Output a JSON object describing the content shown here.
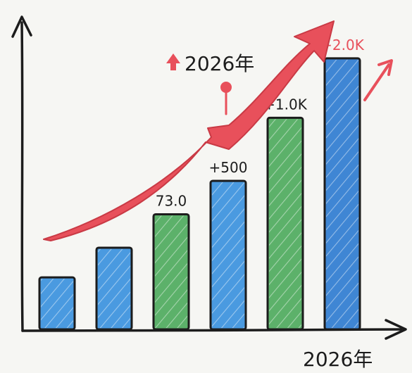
{
  "chart_data": {
    "type": "bar",
    "values": [
      14,
      22,
      31,
      40,
      57,
      73
    ],
    "bar_labels": [
      "",
      "",
      "73.0",
      "+500",
      "+1.0K",
      "+2.0K"
    ],
    "bar_colors": [
      "#4a9ae0",
      "#4a9ae0",
      "#5cb16a",
      "#4a9ae0",
      "#5cb16a",
      "#3f86d4"
    ],
    "xlabel": "2026年",
    "trend_label": "2026年",
    "ylim": [
      0,
      80
    ]
  },
  "colors": {
    "axis": "#1c1c1c",
    "arrow_red": "#e8505b",
    "arrow_red_dark": "#c93a45",
    "label_dark": "#1c1c1c",
    "label_red": "#e8505b"
  }
}
